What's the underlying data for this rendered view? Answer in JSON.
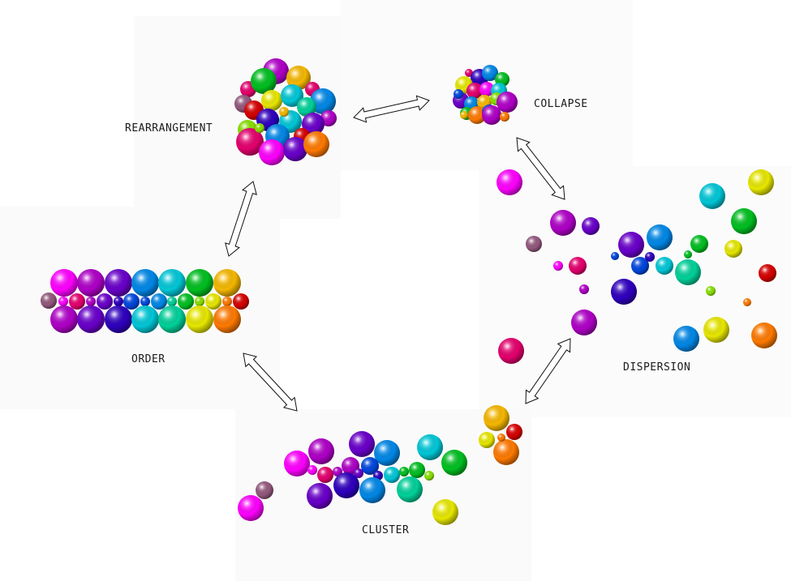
{
  "labels": {
    "rearrangement": "REARRANGEMENT",
    "collapse": "COLLAPSE",
    "order": "ORDER",
    "dispersion": "DISPERSION",
    "cluster": "CLUSTER"
  },
  "palette": [
    "#ff00ff",
    "#b000c8",
    "#6a00cc",
    "#2f00c0",
    "#0047e0",
    "#0088e8",
    "#00c8d8",
    "#00d29a",
    "#00c020",
    "#88e000",
    "#e8e800",
    "#f6b800",
    "#ff7a00",
    "#d80000",
    "#e6006e",
    "#94597e"
  ]
}
